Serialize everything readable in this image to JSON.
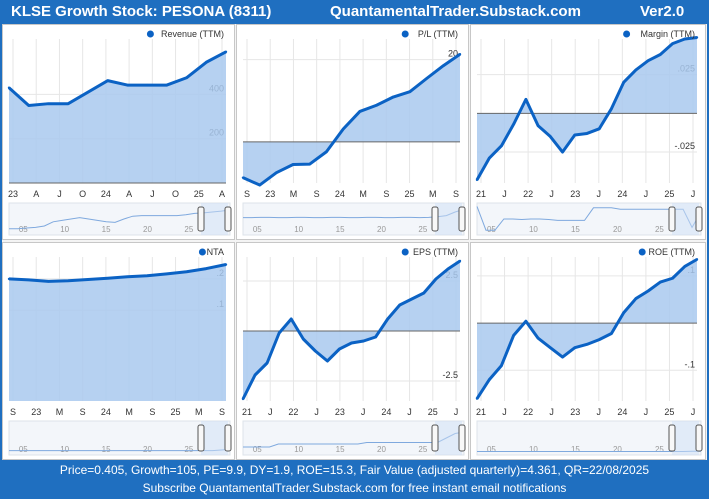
{
  "header": {
    "title": "KLSE Growth Stock: PESONA (8311)",
    "site": "QuantamentalTrader.Substack.com",
    "version": "Ver2.0"
  },
  "footer": {
    "stats": "Price=0.405, Growth=105, PE=9.9, DY=1.9, ROE=15.3, Fair Value (adjusted quarterly)=4.361, QR=22/08/2025",
    "subscribe": "Subscribe QuantamentalTrader.Substack.com for free instant email notifications"
  },
  "colors": {
    "line": "#0b62c4",
    "fill": "#a9c9ee",
    "navigator": "#7fa9de"
  },
  "chart_data": [
    {
      "type": "area",
      "title": "Revenue (TTM)",
      "x_ticks": [
        "23",
        "A",
        "J",
        "O",
        "24",
        "A",
        "J",
        "O",
        "25",
        "A"
      ],
      "y_ticks": [
        {
          "value": 200,
          "label": "200"
        },
        {
          "value": 400,
          "label": "400"
        }
      ],
      "ylim": [
        0,
        650
      ],
      "baseline": 0,
      "values": [
        430,
        350,
        358,
        358,
        410,
        462,
        442,
        442,
        442,
        475,
        545,
        592
      ],
      "navigator_labels": [
        "05",
        "10",
        "15",
        "20",
        "25"
      ],
      "navigator": [
        0.15,
        0.15,
        0.18,
        0.2,
        0.25,
        0.4,
        0.45,
        0.5,
        0.55,
        0.5,
        0.45,
        0.4,
        0.38,
        0.5,
        0.6,
        0.62,
        0.62,
        0.62,
        0.62,
        0.62,
        0.65,
        0.7,
        0.72,
        0.75,
        0.78,
        0.82
      ]
    },
    {
      "type": "area",
      "title": "P/L (TTM)",
      "x_ticks": [
        "S",
        "23",
        "M",
        "S",
        "24",
        "M",
        "S",
        "25",
        "M",
        "S"
      ],
      "y_ticks": [
        {
          "value": 20,
          "label": "20"
        }
      ],
      "ylim": [
        -10,
        25
      ],
      "baseline": 0,
      "values": [
        -8.7,
        -10.5,
        -7.5,
        -5.5,
        -5.4,
        -2.4,
        3.1,
        7.4,
        8.9,
        10.9,
        12.2,
        15.4,
        18.5,
        21.3
      ],
      "navigator_labels": [
        "05",
        "10",
        "15",
        "20",
        "25"
      ],
      "navigator": [
        0.55,
        0.55,
        0.56,
        0.56,
        0.55,
        0.55,
        0.56,
        0.56,
        0.55,
        0.55,
        0.56,
        0.56,
        0.55,
        0.55,
        0.56,
        0.56,
        0.55,
        0.55,
        0.56,
        0.56,
        0.55,
        0.56,
        0.58,
        0.62,
        0.75,
        0.85
      ]
    },
    {
      "type": "area",
      "title": "Margin (TTM)",
      "x_ticks": [
        "21",
        "J",
        "22",
        "J",
        "23",
        "J",
        "24",
        "J",
        "25",
        "J"
      ],
      "y_ticks": [
        {
          "value": 0.025,
          "label": ".025"
        },
        {
          "value": -0.025,
          "label": "-.025"
        }
      ],
      "ylim": [
        -0.045,
        0.048
      ],
      "baseline": 0,
      "values": [
        -0.043,
        -0.029,
        -0.021,
        -0.007,
        0.009,
        -0.008,
        -0.015,
        -0.025,
        -0.014,
        -0.013,
        -0.01,
        0.003,
        0.02,
        0.028,
        0.034,
        0.038,
        0.045,
        0.048,
        0.049
      ],
      "navigator_labels": [
        "05",
        "10",
        "15",
        "20",
        "25"
      ],
      "navigator": [
        0.95,
        0.1,
        0.1,
        0.5,
        0.5,
        0.48,
        0.5,
        0.5,
        0.48,
        0.45,
        0.45,
        0.45,
        0.45,
        0.9,
        0.9,
        0.9,
        0.85,
        0.85,
        0.85,
        0.85,
        0.85,
        0.85,
        0.85,
        0.85,
        0.2,
        0.75
      ]
    },
    {
      "type": "area",
      "title": "NTA",
      "x_ticks": [
        "S",
        "23",
        "M",
        "S",
        "24",
        "M",
        "S",
        "25",
        "M",
        "S"
      ],
      "y_ticks": [
        {
          "value": 0.2,
          "label": ".2"
        },
        {
          "value": 0.1,
          "label": ".1"
        }
      ],
      "ylim": [
        -0.19,
        0.27
      ],
      "baseline": -0.19,
      "values": [
        0.2,
        0.197,
        0.192,
        0.194,
        0.198,
        0.202,
        0.207,
        0.21,
        0.216,
        0.223,
        0.233,
        0.246
      ],
      "navigator_labels": [
        "05",
        "10",
        "15",
        "20",
        "25"
      ],
      "navigator": [
        0.08,
        0.08,
        0.08,
        0.08,
        0.08,
        0.08,
        0.08,
        0.08,
        0.08,
        0.08,
        0.08,
        0.08,
        0.08,
        0.08,
        0.08,
        0.08,
        0.08,
        0.08,
        0.08,
        0.08,
        0.08,
        0.08,
        0.08,
        0.08,
        0.1,
        0.12
      ]
    },
    {
      "type": "area",
      "title": "EPS (TTM)",
      "x_ticks": [
        "21",
        "J",
        "22",
        "J",
        "23",
        "J",
        "24",
        "J",
        "25",
        "J"
      ],
      "y_ticks": [
        {
          "value": 2.5,
          "label": "2.5"
        },
        {
          "value": -2.5,
          "label": "-2.5"
        }
      ],
      "ylim": [
        -3.5,
        3.7
      ],
      "baseline": 0,
      "values": [
        -3.4,
        -2.2,
        -1.6,
        -0.1,
        0.6,
        -0.4,
        -1.0,
        -1.5,
        -0.9,
        -0.6,
        -0.5,
        -0.3,
        0.6,
        1.3,
        1.6,
        1.9,
        2.6,
        3.1,
        3.5
      ],
      "navigator_labels": [
        "05",
        "10",
        "15",
        "20",
        "25"
      ],
      "navigator": [
        0.2,
        0.2,
        0.2,
        0.2,
        0.3,
        0.3,
        0.3,
        0.3,
        0.3,
        0.3,
        0.3,
        0.3,
        0.3,
        0.3,
        0.35,
        0.35,
        0.35,
        0.35,
        0.35,
        0.35,
        0.35,
        0.35,
        0.35,
        0.5,
        0.65,
        0.7
      ]
    },
    {
      "type": "area",
      "title": "ROE (TTM)",
      "x_ticks": [
        "21",
        "J",
        "22",
        "J",
        "23",
        "J",
        "24",
        "J",
        "25",
        "J"
      ],
      "y_ticks": [
        {
          "value": 0.1,
          "label": ".1"
        },
        {
          "value": -0.1,
          "label": "-.1"
        }
      ],
      "ylim": [
        -0.165,
        0.14
      ],
      "baseline": 0,
      "values": [
        -0.16,
        -0.12,
        -0.09,
        -0.026,
        0.004,
        -0.032,
        -0.052,
        -0.072,
        -0.052,
        -0.045,
        -0.035,
        -0.022,
        0.022,
        0.052,
        0.068,
        0.087,
        0.095,
        0.12,
        0.135
      ],
      "navigator_labels": [
        "05",
        "10",
        "15",
        "20",
        "25"
      ],
      "navigator": [
        0.05,
        0.05,
        0.05,
        0.05,
        0.05,
        0.05,
        0.05,
        0.05,
        0.05,
        0.05,
        0.05,
        0.05,
        0.05,
        0.05,
        0.05,
        0.05,
        0.05,
        0.05,
        0.05,
        0.05,
        0.05,
        0.05,
        0.05,
        0.05,
        0.06,
        0.06
      ]
    }
  ]
}
